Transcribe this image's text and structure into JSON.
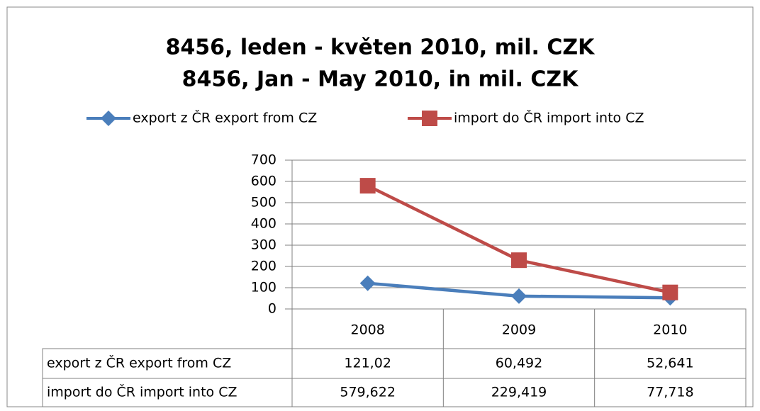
{
  "chart_data": {
    "type": "line",
    "title": "8456, leden - květen 2010, mil. CZK",
    "subtitle": "8456, Jan - May 2010, in mil. CZK",
    "categories": [
      "2008",
      "2009",
      "2010"
    ],
    "series": [
      {
        "name": "export z ČR export from CZ",
        "color": "#4a7ebb",
        "marker": "diamond",
        "values": [
          121.02,
          60.492,
          52.641
        ],
        "value_labels": [
          "121,02",
          "60,492",
          "52,641"
        ]
      },
      {
        "name": "import do ČR import into CZ",
        "color": "#be4b48",
        "marker": "square",
        "values": [
          579.622,
          229.419,
          77.718
        ],
        "value_labels": [
          "579,622",
          "229,419",
          "77,718"
        ]
      }
    ],
    "ylim": [
      0,
      700
    ],
    "yticks": [
      0,
      100,
      200,
      300,
      400,
      500,
      600,
      700
    ],
    "grid": true,
    "legend": "top",
    "data_table": true
  }
}
